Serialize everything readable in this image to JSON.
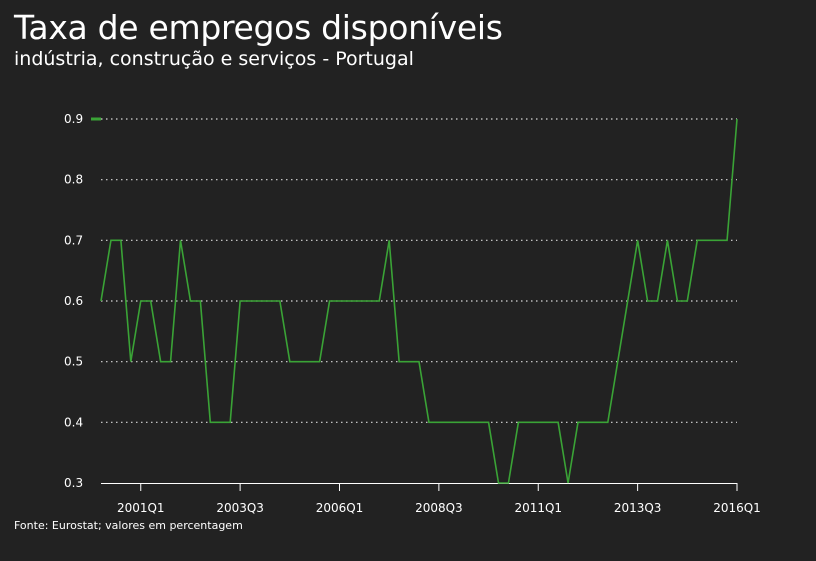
{
  "title": "Taxa de empregos disponíveis",
  "subtitle": "indústria, construção e serviços - Portugal",
  "source": "Fonte: Eurostat; valores em percentagem",
  "colors": {
    "background": "#222222",
    "line": "#3aa336",
    "grid": "#d9d9d9",
    "text": "#ffffff"
  },
  "chart_data": {
    "type": "line",
    "title": "Taxa de empregos disponíveis",
    "subtitle": "indústria, construção e serviços - Portugal",
    "xlabel": "",
    "ylabel": "",
    "ylim": [
      0.3,
      0.9
    ],
    "yticks": [
      0.3,
      0.4,
      0.5,
      0.6,
      0.7,
      0.8,
      0.9
    ],
    "ytick_labels": [
      "0.3",
      "0.4",
      "0.5",
      "0.6",
      "0.7",
      "0.8",
      "0.9"
    ],
    "xtick_labels": [
      "2001Q1",
      "2003Q3",
      "2006Q1",
      "2008Q3",
      "2011Q1",
      "2013Q3",
      "2016Q1"
    ],
    "grid": "horizontal-dotted",
    "legend": "top-left",
    "x": [
      "2000Q1",
      "2000Q2",
      "2000Q3",
      "2000Q4",
      "2001Q1",
      "2001Q2",
      "2001Q3",
      "2001Q4",
      "2002Q1",
      "2002Q2",
      "2002Q3",
      "2002Q4",
      "2003Q1",
      "2003Q2",
      "2003Q3",
      "2003Q4",
      "2004Q1",
      "2004Q2",
      "2004Q3",
      "2004Q4",
      "2005Q1",
      "2005Q2",
      "2005Q3",
      "2005Q4",
      "2006Q1",
      "2006Q2",
      "2006Q3",
      "2006Q4",
      "2007Q1",
      "2007Q2",
      "2007Q3",
      "2007Q4",
      "2008Q1",
      "2008Q2",
      "2008Q3",
      "2008Q4",
      "2009Q1",
      "2009Q2",
      "2009Q3",
      "2009Q4",
      "2010Q1",
      "2010Q2",
      "2010Q3",
      "2010Q4",
      "2011Q1",
      "2011Q2",
      "2011Q3",
      "2011Q4",
      "2012Q1",
      "2012Q2",
      "2012Q3",
      "2012Q4",
      "2013Q1",
      "2013Q2",
      "2013Q3",
      "2013Q4",
      "2014Q1",
      "2014Q2",
      "2014Q3",
      "2014Q4",
      "2015Q1",
      "2015Q2",
      "2015Q3",
      "2015Q4",
      "2016Q1"
    ],
    "series": [
      {
        "values": [
          0.6,
          0.7,
          0.7,
          0.5,
          0.6,
          0.6,
          0.5,
          0.5,
          0.7,
          0.6,
          0.6,
          0.4,
          0.4,
          0.4,
          0.6,
          0.6,
          0.6,
          0.6,
          0.6,
          0.5,
          0.5,
          0.5,
          0.5,
          0.6,
          0.6,
          0.6,
          0.6,
          0.6,
          0.6,
          0.7,
          0.5,
          0.5,
          0.5,
          0.4,
          0.4,
          0.4,
          0.4,
          0.4,
          0.4,
          0.4,
          0.3,
          0.3,
          0.4,
          0.4,
          0.4,
          0.4,
          0.4,
          0.3,
          0.4,
          0.4,
          0.4,
          0.4,
          0.5,
          0.6,
          0.7,
          0.6,
          0.6,
          0.7,
          0.6,
          0.6,
          0.7,
          0.7,
          0.7,
          0.7,
          0.9
        ]
      }
    ]
  }
}
